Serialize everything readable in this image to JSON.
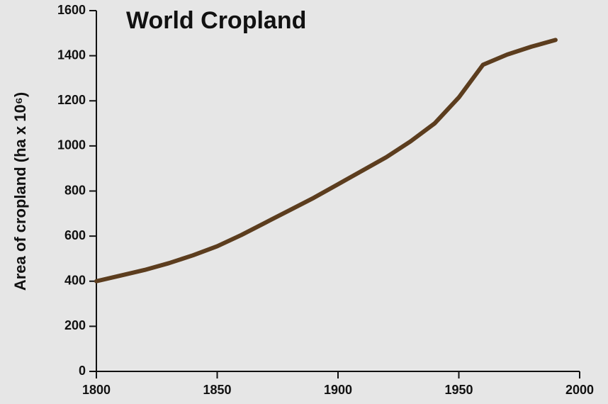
{
  "chart_data": {
    "type": "line",
    "title": "World Cropland",
    "y_label": "Area of cropland (ha x 10⁶)",
    "x": [
      1800,
      1810,
      1820,
      1830,
      1840,
      1850,
      1860,
      1870,
      1880,
      1890,
      1900,
      1910,
      1920,
      1930,
      1940,
      1950,
      1960,
      1970,
      1980,
      1990
    ],
    "series": [
      {
        "name": "World cropland",
        "color": "#5c3d1e",
        "values": [
          400,
          425,
          450,
          480,
          515,
          555,
          605,
          660,
          715,
          770,
          830,
          890,
          950,
          1020,
          1100,
          1215,
          1360,
          1405,
          1440,
          1470
        ]
      }
    ],
    "xlim": [
      1800,
      2000
    ],
    "xticks": [
      1800,
      1850,
      1900,
      1950,
      2000
    ],
    "ylim": [
      0,
      1600
    ],
    "yticks": [
      0,
      200,
      400,
      600,
      800,
      1000,
      1200,
      1400,
      1600
    ],
    "grid": false
  }
}
